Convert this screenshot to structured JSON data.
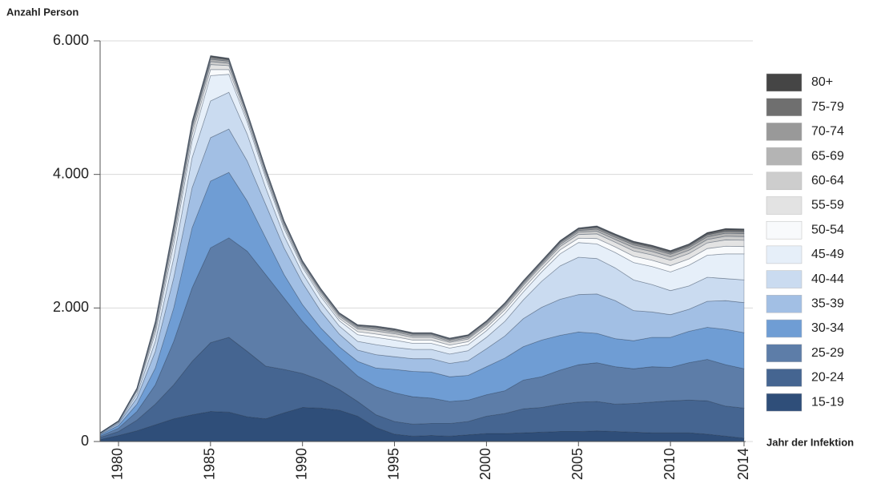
{
  "chart_data": {
    "type": "stacked-area",
    "y_label": "Anzahl Person",
    "x_label": "Jahr der Infektion",
    "x": [
      1979,
      1980,
      1981,
      1982,
      1983,
      1984,
      1985,
      1986,
      1987,
      1988,
      1989,
      1990,
      1991,
      1992,
      1993,
      1994,
      1995,
      1996,
      1997,
      1998,
      1999,
      2000,
      2001,
      2002,
      2003,
      2004,
      2005,
      2006,
      2007,
      2008,
      2009,
      2010,
      2011,
      2012,
      2013,
      2014
    ],
    "xlim": [
      1979,
      2014
    ],
    "xticks": [
      1980,
      1985,
      1990,
      1995,
      2000,
      2005,
      2010,
      2014
    ],
    "ylim": [
      0,
      6000
    ],
    "yticks": [
      0,
      {
        "value": 2000,
        "label": "2.000"
      },
      {
        "value": 4000,
        "label": "4.000"
      },
      {
        "value": 6000,
        "label": "6.000"
      }
    ],
    "grid": true,
    "legend": "right",
    "series": [
      {
        "name": "15-19",
        "color": "#2f4e79",
        "values": [
          30,
          90,
          160,
          250,
          340,
          400,
          450,
          440,
          370,
          340,
          430,
          510,
          500,
          470,
          380,
          210,
          110,
          80,
          90,
          80,
          100,
          120,
          120,
          130,
          140,
          150,
          150,
          160,
          150,
          140,
          130,
          130,
          130,
          110,
          80,
          50
        ]
      },
      {
        "name": "20-24",
        "color": "#456591",
        "values": [
          30,
          60,
          160,
          310,
          510,
          800,
          1030,
          1120,
          980,
          790,
          650,
          510,
          420,
          310,
          220,
          190,
          190,
          180,
          180,
          190,
          200,
          260,
          300,
          360,
          370,
          410,
          440,
          440,
          410,
          430,
          460,
          480,
          490,
          500,
          450,
          450
        ]
      },
      {
        "name": "25-29",
        "color": "#5d7da8",
        "values": [
          20,
          50,
          130,
          290,
          650,
          1100,
          1420,
          1490,
          1500,
          1370,
          1070,
          780,
          580,
          450,
          380,
          420,
          430,
          410,
          380,
          330,
          320,
          320,
          340,
          430,
          460,
          510,
          560,
          580,
          560,
          520,
          530,
          500,
          560,
          620,
          620,
          590
        ]
      },
      {
        "name": "30-34",
        "color": "#6f9dd4",
        "values": [
          20,
          40,
          110,
          250,
          500,
          900,
          1000,
          980,
          750,
          550,
          350,
          250,
          200,
          190,
          220,
          280,
          350,
          380,
          390,
          370,
          370,
          420,
          490,
          500,
          550,
          520,
          490,
          440,
          420,
          420,
          440,
          450,
          470,
          480,
          530,
          540
        ]
      },
      {
        "name": "35-39",
        "color": "#a2bfe4",
        "values": [
          10,
          30,
          90,
          250,
          450,
          600,
          650,
          650,
          600,
          500,
          400,
          330,
          250,
          190,
          170,
          200,
          190,
          190,
          200,
          200,
          220,
          270,
          330,
          420,
          490,
          540,
          560,
          590,
          570,
          450,
          380,
          340,
          330,
          390,
          430,
          450
        ]
      },
      {
        "name": "40-44",
        "color": "#cadbf0",
        "values": [
          10,
          15,
          60,
          150,
          300,
          450,
          550,
          550,
          400,
          250,
          180,
          140,
          130,
          120,
          130,
          150,
          140,
          140,
          140,
          140,
          150,
          170,
          220,
          280,
          390,
          500,
          560,
          530,
          490,
          460,
          410,
          360,
          350,
          360,
          330,
          340
        ]
      },
      {
        "name": "45-49",
        "color": "#e6eff9",
        "values": [
          5,
          10,
          40,
          120,
          200,
          250,
          380,
          270,
          180,
          150,
          110,
          90,
          90,
          80,
          100,
          110,
          110,
          90,
          90,
          90,
          90,
          100,
          120,
          120,
          140,
          180,
          220,
          220,
          230,
          260,
          270,
          280,
          310,
          330,
          370,
          390
        ]
      },
      {
        "name": "50-54",
        "color": "#f8fafc",
        "values": [
          2,
          5,
          15,
          55,
          90,
          90,
          90,
          70,
          45,
          40,
          35,
          30,
          35,
          35,
          45,
          50,
          50,
          50,
          50,
          45,
          45,
          45,
          50,
          50,
          50,
          60,
          65,
          80,
          85,
          95,
          95,
          95,
          95,
          100,
          115,
          110
        ]
      },
      {
        "name": "55-59",
        "color": "#e3e3e3",
        "values": [
          1,
          4,
          12,
          45,
          75,
          75,
          75,
          60,
          40,
          35,
          30,
          25,
          30,
          30,
          40,
          45,
          45,
          40,
          40,
          40,
          40,
          40,
          40,
          45,
          45,
          50,
          55,
          70,
          70,
          80,
          80,
          80,
          80,
          85,
          95,
          95
        ]
      },
      {
        "name": "60-64",
        "color": "#cdcdcd",
        "values": [
          1,
          2,
          8,
          30,
          45,
          45,
          45,
          35,
          25,
          20,
          20,
          15,
          20,
          20,
          20,
          25,
          25,
          25,
          25,
          20,
          20,
          20,
          25,
          25,
          25,
          30,
          35,
          40,
          40,
          50,
          50,
          50,
          50,
          50,
          55,
          55
        ]
      },
      {
        "name": "65-69",
        "color": "#b4b4b4",
        "values": [
          1,
          2,
          6,
          20,
          35,
          35,
          35,
          30,
          15,
          20,
          15,
          12,
          15,
          15,
          20,
          20,
          20,
          20,
          20,
          20,
          20,
          20,
          20,
          20,
          20,
          25,
          25,
          30,
          35,
          40,
          40,
          40,
          40,
          40,
          45,
          45
        ]
      },
      {
        "name": "70-74",
        "color": "#999999",
        "values": [
          0,
          1,
          4,
          15,
          25,
          25,
          25,
          20,
          12,
          12,
          10,
          8,
          10,
          10,
          12,
          15,
          15,
          12,
          12,
          12,
          12,
          12,
          12,
          15,
          15,
          15,
          20,
          25,
          25,
          25,
          25,
          25,
          25,
          30,
          30,
          30
        ]
      },
      {
        "name": "75-79",
        "color": "#6f6f6f",
        "values": [
          0,
          1,
          3,
          10,
          20,
          20,
          20,
          15,
          8,
          8,
          6,
          6,
          6,
          6,
          8,
          10,
          10,
          8,
          8,
          8,
          8,
          8,
          8,
          10,
          10,
          12,
          12,
          15,
          15,
          20,
          20,
          20,
          20,
          20,
          25,
          25
        ]
      },
      {
        "name": "80+",
        "color": "#454545",
        "values": [
          0,
          0,
          2,
          5,
          10,
          10,
          10,
          10,
          5,
          5,
          4,
          4,
          4,
          4,
          5,
          5,
          5,
          5,
          5,
          5,
          5,
          5,
          5,
          5,
          5,
          8,
          8,
          10,
          10,
          10,
          10,
          10,
          10,
          15,
          15,
          15
        ]
      }
    ]
  }
}
